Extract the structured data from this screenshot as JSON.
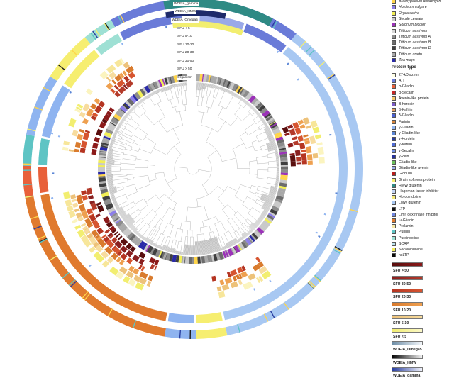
{
  "ring_labels": [
    "WDEIA_gamma",
    "WDEIA_HMW",
    "WDEIA_Omega5",
    "SFU < 5",
    "SFU 5-10",
    "SFU 10-20",
    "SFU 20-30",
    "SFU 30-50",
    "SFU > 50",
    "Organism"
  ],
  "organism_legend": [
    {
      "label": "Brachypodium distachyon",
      "color": "#ffd54a"
    },
    {
      "label": "Hordeum vulgare",
      "color": "#8c7ee8"
    },
    {
      "label": "Oryza sativa",
      "color": "#f2ef55"
    },
    {
      "label": "Secale cereale",
      "color": "#c9c9c9"
    },
    {
      "label": "Sorghum bicolor",
      "color": "#9b32b8"
    },
    {
      "label": "Triticum aestivum",
      "color": "#d7d7d7"
    },
    {
      "label": "Triticum aestivum A",
      "color": "#8c8c8c"
    },
    {
      "label": "Triticum aestivum B",
      "color": "#6c6c6c"
    },
    {
      "label": "Triticum aestivum D",
      "color": "#3f3f3f"
    },
    {
      "label": "Triticum urartu",
      "color": "#a9a9a9"
    },
    {
      "label": "Zea mays",
      "color": "#2a2aa8"
    }
  ],
  "protein_type_title": "Protein type",
  "protein_legend": [
    {
      "label": "27-kDa zein",
      "color": "#ffffe6"
    },
    {
      "label": "ATI",
      "color": "#6a7bd8"
    },
    {
      "label": "α-Gliadin",
      "color": "#e8603a"
    },
    {
      "label": "α-Secalin",
      "color": "#c62828"
    },
    {
      "label": "Avenin-like protein",
      "color": "#f4c86a"
    },
    {
      "label": "B hordein",
      "color": "#7a5ac8"
    },
    {
      "label": "β-Kafirin",
      "color": "#e9a060"
    },
    {
      "label": "δ-Gliadin",
      "color": "#4a5fd0"
    },
    {
      "label": "Farinin",
      "color": "#d8863c"
    },
    {
      "label": "γ-Gliadin",
      "color": "#8fb4f0"
    },
    {
      "label": "γ-Gliadin-like",
      "color": "#5b86d6"
    },
    {
      "label": "γ-Hordein",
      "color": "#2b3c9c"
    },
    {
      "label": "γ-Kafirin",
      "color": "#4e6ad4"
    },
    {
      "label": "γ-Secalin",
      "color": "#6f8ee0"
    },
    {
      "label": "γ-Zein",
      "color": "#23309a"
    },
    {
      "label": "Gliadin-like",
      "color": "#6bbf59"
    },
    {
      "label": "Gliadin-like avenin",
      "color": "#9aa9e8"
    },
    {
      "label": "Globulin",
      "color": "#b71c1c"
    },
    {
      "label": "Grain softness protein",
      "color": "#f6ee70"
    },
    {
      "label": "HMW glutenin",
      "color": "#2f8a84"
    },
    {
      "label": "Hageman factor inhibitor",
      "color": "#c5d5f5"
    },
    {
      "label": "Hordoindoline",
      "color": "#f6ea7a"
    },
    {
      "label": "LMW glutenin",
      "color": "#a8c8f2"
    },
    {
      "label": "LTP",
      "color": "#111111"
    },
    {
      "label": "Limit dextrinase inhibitor",
      "color": "#6d83de"
    },
    {
      "label": "ω-Gliadin",
      "color": "#e07a2e"
    },
    {
      "label": "Prolamin",
      "color": "#f7e9a8"
    },
    {
      "label": "Purinin",
      "color": "#5ec4c4"
    },
    {
      "label": "Puroindoline",
      "color": "#9ee0d4"
    },
    {
      "label": "SCRP",
      "color": "#bce3ee"
    },
    {
      "label": "Secaloindoline",
      "color": "#f3ec5a"
    },
    {
      "label": "nsLTP",
      "color": "#0a0a0a"
    }
  ],
  "gradient_legend": [
    {
      "label": "SFU > 50",
      "from": "#5a0f0f",
      "to": "#8b1a1a"
    },
    {
      "label": "SFU 30-50",
      "from": "#8a2020",
      "to": "#b33a2a"
    },
    {
      "label": "SFU 20-30",
      "from": "#b53522",
      "to": "#d65530"
    },
    {
      "label": "SFU 10-20",
      "from": "#d97b2e",
      "to": "#eea050"
    },
    {
      "label": "SFU 5-10",
      "from": "#edc27a",
      "to": "#f7dc9e"
    },
    {
      "label": "SFU < 5",
      "from": "#f2ee70",
      "to": "#fbf8c8"
    },
    {
      "label": "WDEIA_Omega5",
      "from": "#6f8fa8",
      "to": "#f4f7fb"
    },
    {
      "label": "WDEIA_HMW",
      "from": "#050505",
      "to": "#f2f2f2"
    },
    {
      "label": "WDEIA_gamma",
      "from": "#2a3fa0",
      "to": "#f0f2fb"
    }
  ]
}
